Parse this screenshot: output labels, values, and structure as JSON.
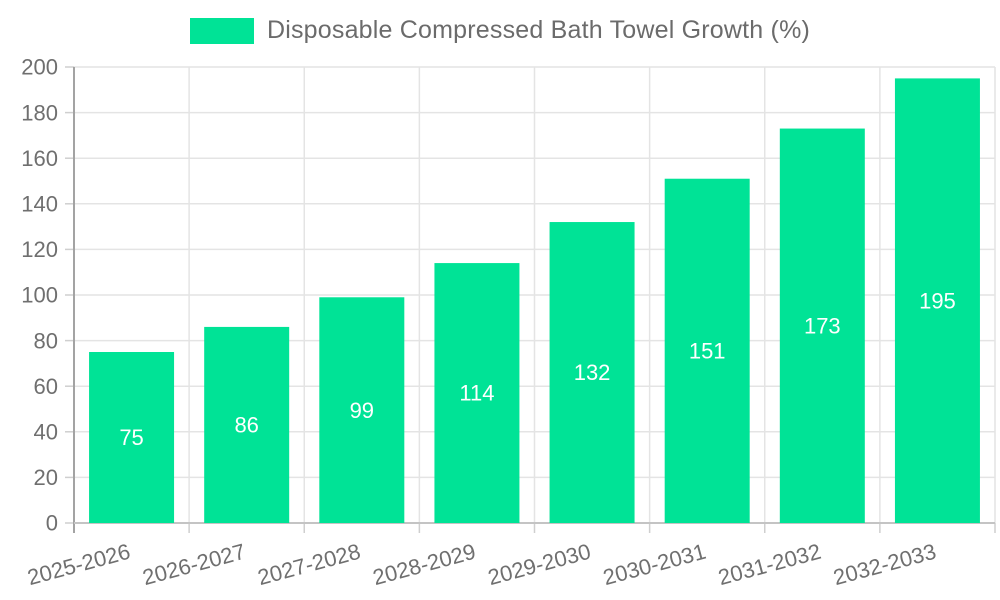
{
  "legend": {
    "position": "top",
    "items": [
      {
        "label": "Disposable Compressed Bath Towel Growth (%)",
        "swatch_color": "#00E396"
      }
    ]
  },
  "colors": {
    "bar": "#00E396",
    "grid": "#e4e4e4",
    "axis_y": "#a3a3a3",
    "axis_x": "#c4c4c4",
    "tick": "#cfcfcf",
    "label_text": "#6f6f6f",
    "title_text": "#6b6b6b",
    "value_label": "#ffffff",
    "background": "#ffffff"
  },
  "chart_data": {
    "type": "bar",
    "title": "Disposable Compressed Bath Towel Growth (%)",
    "xlabel": "",
    "ylabel": "",
    "categories": [
      "2025-2026",
      "2026-2027",
      "2027-2028",
      "2028-2029",
      "2029-2030",
      "2030-2031",
      "2031-2032",
      "2032-2033"
    ],
    "values": [
      75,
      86,
      99,
      114,
      132,
      151,
      173,
      195
    ],
    "ylim": [
      0,
      200
    ],
    "ytick_step": 20,
    "yticks": [
      0,
      20,
      40,
      60,
      80,
      100,
      120,
      140,
      160,
      180,
      200
    ],
    "grid": {
      "horizontal": true,
      "vertical": true
    },
    "bar_labels_inside": true,
    "x_label_rotation": -15,
    "legend_position": "top"
  }
}
